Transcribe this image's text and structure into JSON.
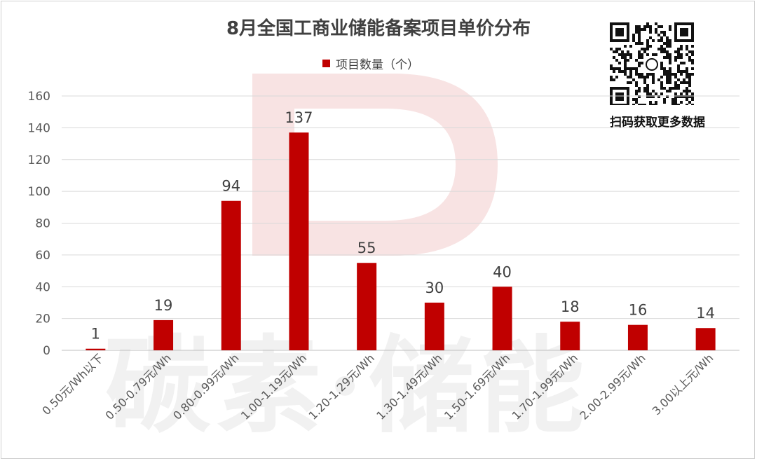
{
  "title": "8月全国工商业储能备案项目单价分布",
  "legend_label": "项目数量（个）",
  "qr_caption": "扫码获取更多数据",
  "watermark_text": "碳素·储能",
  "colors": {
    "bar": "#c00000",
    "axis_text": "#595959",
    "grid": "#d9d9d9",
    "watermark": "#f6e0e0"
  },
  "chart_data": {
    "type": "bar",
    "title": "8月全国工商业储能备案项目单价分布",
    "categories": [
      "0.50元/Wh以下",
      "0.50-0.79元/Wh",
      "0.80-0.99元/Wh",
      "1.00-1.19元/Wh",
      "1.20-1.29元/Wh",
      "1.30-1.49元/Wh",
      "1.50-1.69元/Wh",
      "1.70-1.99元/Wh",
      "2.00-2.99元/Wh",
      "3.00以上元/Wh"
    ],
    "series": [
      {
        "name": "项目数量（个）",
        "values": [
          1,
          19,
          94,
          137,
          55,
          30,
          40,
          18,
          16,
          14
        ]
      }
    ],
    "ylim": [
      0,
      160
    ],
    "yticks": [
      0,
      20,
      40,
      60,
      80,
      100,
      120,
      140,
      160
    ],
    "grid": true,
    "legend_position": "top-center",
    "data_labels": true
  }
}
